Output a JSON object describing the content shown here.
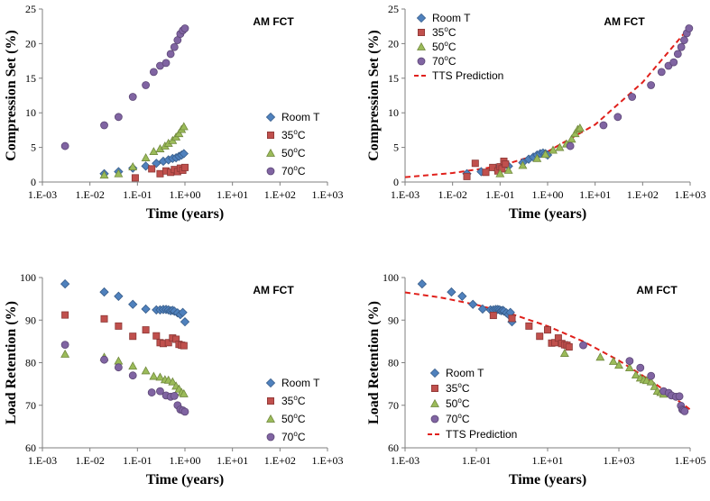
{
  "figure": {
    "series_styles": [
      {
        "name": "Room T",
        "marker": "diamond",
        "fill": "#4f81bd",
        "stroke": "#385d8a"
      },
      {
        "name": "35ºC",
        "marker": "square",
        "fill": "#c0504d",
        "stroke": "#8c3836"
      },
      {
        "name": "50ºC",
        "marker": "triangle",
        "fill": "#9bbb59",
        "stroke": "#71893f"
      },
      {
        "name": "70ºC",
        "marker": "circle",
        "fill": "#8064a2",
        "stroke": "#5c4776"
      }
    ],
    "prediction_color": "#e0201b"
  },
  "chart_data": [
    {
      "type": "scatter",
      "panel": "top-left",
      "annotation": "AM FCT",
      "xlabel": "Time (years)",
      "ylabel": "Compression Set (%)",
      "xscale": "log",
      "xlim": [
        0.001,
        1000
      ],
      "x_ticks": [
        0.001,
        0.01,
        0.1,
        1,
        10,
        100,
        1000
      ],
      "x_tick_labels": [
        "1.E-03",
        "1.E-02",
        "1.E-01",
        "1.E+00",
        "1.E+01",
        "1.E+02",
        "1.E+03"
      ],
      "ylim": [
        0,
        25
      ],
      "y_ticks": [
        0,
        5,
        10,
        15,
        20,
        25
      ],
      "y_tick_labels": [
        "0",
        "5",
        "10",
        "15",
        "20",
        "25"
      ],
      "legend_position": "right",
      "legend": {
        "entries": [
          {
            "label": "Room T",
            "base": "Room T",
            "sup": ""
          },
          {
            "label": "35ºC",
            "base": "35",
            "sup": "o",
            "unit": "C"
          },
          {
            "label": "50ºC",
            "base": "50",
            "sup": "o",
            "unit": "C"
          },
          {
            "label": "70ºC",
            "base": "70",
            "sup": "o",
            "unit": "C"
          }
        ]
      },
      "series": [
        {
          "name": "Room T",
          "x": [
            0.02,
            0.04,
            0.08,
            0.15,
            0.25,
            0.35,
            0.45,
            0.55,
            0.65,
            0.75,
            0.85,
            0.95
          ],
          "y": [
            1.2,
            1.5,
            2.0,
            2.3,
            2.7,
            3.0,
            3.2,
            3.4,
            3.5,
            3.7,
            3.9,
            4.1
          ]
        },
        {
          "name": "35ºC",
          "x": [
            0.09,
            0.2,
            0.3,
            0.4,
            0.5,
            0.6,
            0.7,
            0.8,
            0.9,
            1.0
          ],
          "y": [
            0.6,
            1.9,
            1.2,
            1.6,
            1.4,
            1.8,
            1.5,
            2.0,
            1.7,
            2.1
          ]
        },
        {
          "name": "50ºC",
          "x": [
            0.02,
            0.04,
            0.08,
            0.15,
            0.22,
            0.3,
            0.38,
            0.45,
            0.55,
            0.65,
            0.75,
            0.85,
            0.95
          ],
          "y": [
            1.0,
            1.2,
            2.2,
            3.5,
            4.4,
            4.8,
            5.2,
            5.6,
            6.0,
            6.5,
            7.0,
            7.6,
            8.0
          ]
        },
        {
          "name": "70ºC",
          "x": [
            0.003,
            0.02,
            0.04,
            0.08,
            0.15,
            0.22,
            0.3,
            0.4,
            0.5,
            0.6,
            0.7,
            0.8,
            0.9,
            1.0
          ],
          "y": [
            5.2,
            8.2,
            9.4,
            12.3,
            14.0,
            15.9,
            16.8,
            17.2,
            18.5,
            19.5,
            20.5,
            21.4,
            21.9,
            22.2
          ]
        }
      ]
    },
    {
      "type": "scatter",
      "panel": "top-right",
      "annotation": "AM FCT",
      "xlabel": "Time (years)",
      "ylabel": "Compression Set (%)",
      "xscale": "log",
      "xlim": [
        0.001,
        1000
      ],
      "x_ticks": [
        0.001,
        0.01,
        0.1,
        1,
        10,
        100,
        1000
      ],
      "x_tick_labels": [
        "1.E-03",
        "1.E-02",
        "1.E-01",
        "1.E+00",
        "1.E+01",
        "1.E+02",
        "1.E+03"
      ],
      "ylim": [
        0,
        25
      ],
      "y_ticks": [
        0,
        5,
        10,
        15,
        20,
        25
      ],
      "y_tick_labels": [
        "0",
        "5",
        "10",
        "15",
        "20",
        "25"
      ],
      "legend_position": "top-left",
      "legend": {
        "entries": [
          {
            "label": "Room T",
            "base": "Room T",
            "sup": ""
          },
          {
            "label": "35ºC",
            "base": "35",
            "sup": "o",
            "unit": "C"
          },
          {
            "label": "50ºC",
            "base": "50",
            "sup": "o",
            "unit": "C"
          },
          {
            "label": "70ºC",
            "base": "70",
            "sup": "o",
            "unit": "C"
          }
        ],
        "prediction_label": "TTS Prediction"
      },
      "series": [
        {
          "name": "Room T",
          "x": [
            0.02,
            0.04,
            0.08,
            0.15,
            0.3,
            0.4,
            0.5,
            0.6,
            0.7,
            0.8,
            0.9,
            1.0
          ],
          "y": [
            1.2,
            1.5,
            2.0,
            2.3,
            2.8,
            3.3,
            3.6,
            3.9,
            4.1,
            4.2,
            4.1,
            3.9
          ]
        },
        {
          "name": "35ºC",
          "x": [
            0.02,
            0.03,
            0.05,
            0.07,
            0.09,
            0.1,
            0.11,
            0.12,
            0.13
          ],
          "y": [
            0.8,
            2.7,
            1.4,
            2.1,
            1.6,
            2.2,
            1.9,
            3.0,
            2.6
          ]
        },
        {
          "name": "50ºC",
          "x": [
            0.1,
            0.15,
            0.3,
            0.6,
            0.9,
            1.3,
            1.8,
            2.5,
            3.2,
            3.8,
            4.3,
            4.8
          ],
          "y": [
            1.2,
            1.7,
            2.4,
            3.4,
            4.0,
            4.6,
            5.0,
            5.5,
            6.2,
            7.0,
            7.6,
            7.8
          ]
        },
        {
          "name": "70ºC",
          "x": [
            3,
            15,
            30,
            60,
            150,
            250,
            350,
            450,
            550,
            650,
            750,
            850,
            950
          ],
          "y": [
            5.2,
            8.2,
            9.4,
            12.3,
            14.0,
            15.9,
            16.8,
            17.3,
            18.5,
            19.5,
            20.5,
            21.5,
            22.2
          ]
        }
      ],
      "prediction": {
        "name": "TTS Prediction",
        "x": [
          0.001,
          0.01,
          0.1,
          1,
          10,
          100,
          1000
        ],
        "y": [
          0.7,
          1.3,
          2.3,
          4.4,
          8.3,
          14.4,
          22.5
        ]
      }
    },
    {
      "type": "scatter",
      "panel": "bottom-left",
      "annotation": "AM FCT",
      "xlabel": "Time (years)",
      "ylabel": "Load Retention (%)",
      "xscale": "log",
      "xlim": [
        0.001,
        1000
      ],
      "x_ticks": [
        0.001,
        0.01,
        0.1,
        1,
        10,
        100,
        1000
      ],
      "x_tick_labels": [
        "1.E-03",
        "1.E-02",
        "1.E-01",
        "1.E+00",
        "1.E+01",
        "1.E+02",
        "1.E+03"
      ],
      "ylim": [
        60,
        100
      ],
      "y_ticks": [
        60,
        70,
        80,
        90,
        100
      ],
      "y_tick_labels": [
        "60",
        "70",
        "80",
        "90",
        "100"
      ],
      "legend_position": "right",
      "legend": {
        "entries": [
          {
            "label": "Room T",
            "base": "Room T",
            "sup": ""
          },
          {
            "label": "35ºC",
            "base": "35",
            "sup": "o",
            "unit": "C"
          },
          {
            "label": "50ºC",
            "base": "50",
            "sup": "o",
            "unit": "C"
          },
          {
            "label": "70ºC",
            "base": "70",
            "sup": "o",
            "unit": "C"
          }
        ]
      },
      "series": [
        {
          "name": "Room T",
          "x": [
            0.003,
            0.02,
            0.04,
            0.08,
            0.15,
            0.25,
            0.3,
            0.35,
            0.4,
            0.45,
            0.5,
            0.55,
            0.6,
            0.7,
            0.8,
            0.9,
            1.0
          ],
          "y": [
            98.5,
            96.6,
            95.6,
            93.7,
            92.6,
            92.4,
            92.4,
            92.5,
            92.5,
            92.4,
            92.2,
            92.3,
            92.1,
            91.7,
            91.3,
            91.8,
            89.6
          ]
        },
        {
          "name": "35ºC",
          "x": [
            0.003,
            0.02,
            0.04,
            0.08,
            0.15,
            0.25,
            0.3,
            0.35,
            0.45,
            0.55,
            0.65,
            0.75,
            0.85,
            0.95
          ],
          "y": [
            91.2,
            90.3,
            88.6,
            86.2,
            87.7,
            86.3,
            84.7,
            84.5,
            84.7,
            85.8,
            85.5,
            84.3,
            84.1,
            84.0
          ]
        },
        {
          "name": "50ºC",
          "x": [
            0.003,
            0.02,
            0.04,
            0.08,
            0.15,
            0.22,
            0.3,
            0.38,
            0.45,
            0.55,
            0.65,
            0.75,
            0.85,
            0.95
          ],
          "y": [
            82.0,
            81.3,
            80.4,
            79.2,
            78.1,
            76.8,
            76.6,
            76.0,
            75.9,
            75.5,
            74.5,
            73.8,
            73.0,
            72.7
          ]
        },
        {
          "name": "70ºC",
          "x": [
            0.003,
            0.02,
            0.04,
            0.08,
            0.2,
            0.3,
            0.4,
            0.5,
            0.6,
            0.7,
            0.8,
            0.9,
            1.0
          ],
          "y": [
            84.2,
            80.7,
            78.9,
            77.0,
            73.0,
            73.3,
            72.3,
            72.0,
            72.2,
            70.0,
            69.0,
            68.8,
            68.5
          ]
        }
      ]
    },
    {
      "type": "scatter",
      "panel": "bottom-right",
      "annotation": "AM FCT",
      "xlabel": "Time (years)",
      "ylabel": "Load Retention (%)",
      "xscale": "log",
      "xlim": [
        0.001,
        100000
      ],
      "x_ticks": [
        0.001,
        0.1,
        10,
        1000,
        100000
      ],
      "x_tick_labels": [
        "1.E-03",
        "1.E-01",
        "1.E+01",
        "1.E+03",
        "1.E+05"
      ],
      "ylim": [
        60,
        100
      ],
      "y_ticks": [
        60,
        70,
        80,
        90,
        100
      ],
      "y_tick_labels": [
        "60",
        "70",
        "80",
        "90",
        "100"
      ],
      "legend_position": "bottom-left",
      "legend": {
        "entries": [
          {
            "label": "Room T",
            "base": "Room T",
            "sup": ""
          },
          {
            "label": "35ºC",
            "base": "35",
            "sup": "o",
            "unit": "C"
          },
          {
            "label": "50ºC",
            "base": "50",
            "sup": "o",
            "unit": "C"
          },
          {
            "label": "70ºC",
            "base": "70",
            "sup": "o",
            "unit": "C"
          }
        ],
        "prediction_label": "TTS Prediction"
      },
      "series": [
        {
          "name": "Room T",
          "x": [
            0.003,
            0.02,
            0.04,
            0.08,
            0.15,
            0.25,
            0.3,
            0.35,
            0.4,
            0.45,
            0.5,
            0.55,
            0.6,
            0.7,
            0.8,
            0.9,
            1.0
          ],
          "y": [
            98.5,
            96.6,
            95.6,
            93.7,
            92.6,
            92.4,
            92.4,
            92.5,
            92.5,
            92.4,
            92.2,
            92.3,
            92.1,
            91.7,
            91.3,
            91.8,
            89.6
          ]
        },
        {
          "name": "35ºC",
          "x": [
            0.3,
            1,
            3,
            6,
            10,
            13,
            16,
            20,
            25,
            30,
            35,
            40
          ],
          "y": [
            91.1,
            90.4,
            88.6,
            86.2,
            87.7,
            84.6,
            84.7,
            85.8,
            84.5,
            84.2,
            84.1,
            83.7
          ]
        },
        {
          "name": "50ºC",
          "x": [
            30,
            300,
            700,
            1000,
            2000,
            3000,
            4000,
            5000,
            6000,
            8000,
            10000,
            12000,
            15000,
            18000
          ],
          "y": [
            82.2,
            81.3,
            80.3,
            79.4,
            78.8,
            77.1,
            76.4,
            76.0,
            75.8,
            75.5,
            74.4,
            73.3,
            73.0,
            72.6
          ]
        },
        {
          "name": "70ºC",
          "x": [
            100,
            2000,
            4000,
            8000,
            18000,
            25000,
            30000,
            40000,
            50000,
            55000,
            60000,
            65000,
            70000
          ],
          "y": [
            84.1,
            80.4,
            78.8,
            76.9,
            73.3,
            72.9,
            72.3,
            72.0,
            72.1,
            69.9,
            69.0,
            68.8,
            68.6
          ]
        }
      ],
      "prediction": {
        "name": "TTS Prediction",
        "x": [
          0.001,
          0.01,
          0.1,
          1,
          10,
          100,
          1000,
          10000,
          100000
        ],
        "y": [
          96.5,
          95.3,
          93.6,
          91.4,
          88.6,
          85.0,
          80.5,
          75.2,
          69.0
        ]
      }
    }
  ]
}
